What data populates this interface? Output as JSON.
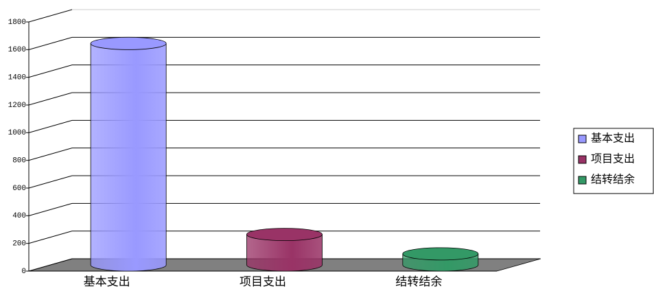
{
  "chart_data": {
    "type": "cylinder-bar",
    "categories": [
      "基本支出",
      "项目支出",
      "结转结余"
    ],
    "values": [
      1600,
      220,
      80
    ],
    "colors": [
      "#9999ff",
      "#993366",
      "#339966"
    ],
    "ylim": [
      0,
      1800
    ],
    "yticks": [
      0,
      200,
      400,
      600,
      800,
      1000,
      1200,
      1400,
      1600,
      1800
    ],
    "grid": true,
    "legend": "right"
  }
}
